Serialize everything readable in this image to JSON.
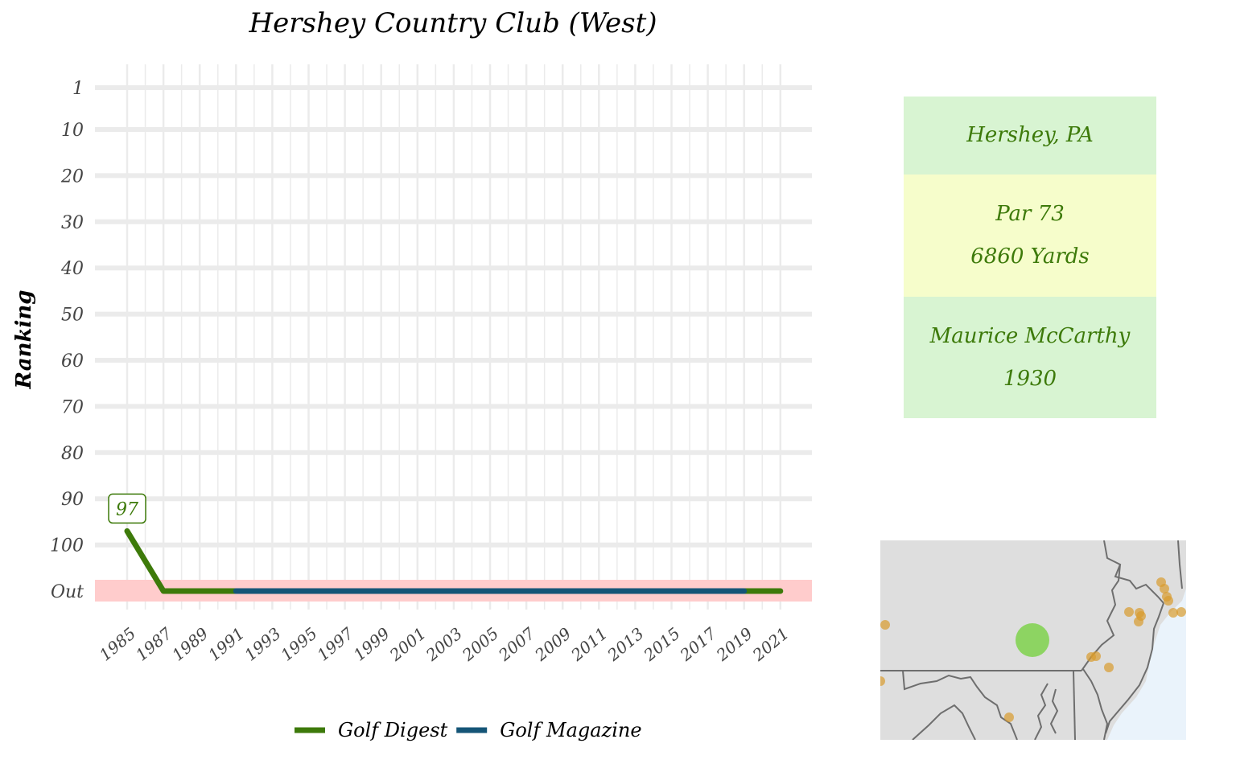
{
  "chart_data": {
    "type": "line",
    "title": "Hershey Country Club (West)",
    "xlabel": "",
    "ylabel": "Ranking",
    "x_ticks": [
      "1985",
      "1987",
      "1989",
      "1991",
      "1993",
      "1995",
      "1997",
      "1999",
      "2001",
      "2003",
      "2005",
      "2007",
      "2009",
      "2011",
      "2013",
      "2015",
      "2017",
      "2019",
      "2021"
    ],
    "y_ticks": [
      "1",
      "10",
      "20",
      "30",
      "40",
      "50",
      "60",
      "70",
      "80",
      "90",
      "100",
      "Out"
    ],
    "xlim": [
      1985,
      2021
    ],
    "series": [
      {
        "name": "Golf Digest",
        "color": "#3d7a0a",
        "points": [
          [
            1985,
            97
          ],
          [
            1987,
            "Out"
          ],
          [
            2021,
            "Out"
          ]
        ]
      },
      {
        "name": "Golf Magazine",
        "color": "#155577",
        "points": [
          [
            1991,
            "Out"
          ],
          [
            2019,
            "Out"
          ]
        ]
      }
    ],
    "annotations": [
      {
        "x": 1985,
        "y": 97,
        "label": "97"
      }
    ],
    "out_band_color": "#ffcccc",
    "legend_position": "bottom"
  },
  "info": {
    "location": "Hershey, PA",
    "par": "Par 73",
    "yards": "6860 Yards",
    "architect": "Maurice McCarthy",
    "year": "1930"
  },
  "map": {
    "land_color": "#dedede",
    "water_color": "#eaf3fb",
    "border_color": "#6e6e6e",
    "other_course_color": "#d89b2e",
    "highlight_color": "#7fd24c"
  }
}
